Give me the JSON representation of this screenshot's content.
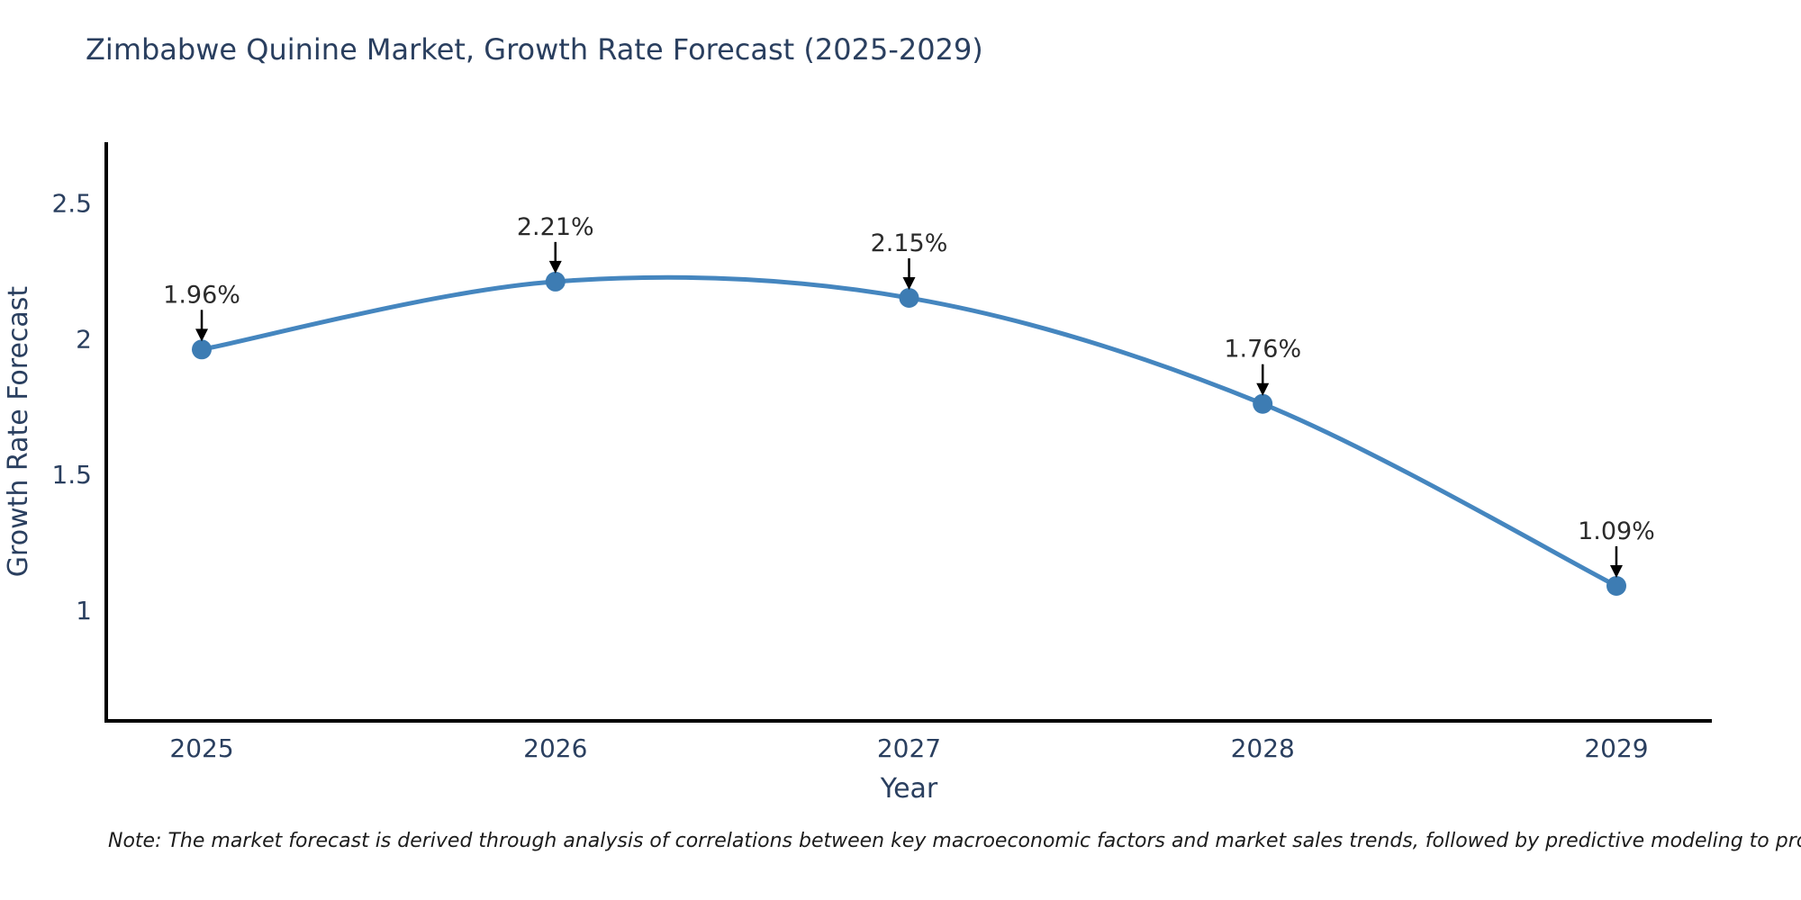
{
  "title": "Zimbabwe Quinine Market, Growth Rate Forecast (2025-2029)",
  "note": "Note: The market forecast is derived through analysis of correlations between key macroeconomic factors and market sales trends, followed by predictive modeling to project future sales",
  "colors": {
    "title_text": "#2a3f5f",
    "tick_text": "#2a3f5f",
    "axis_line": "#000000",
    "series_line": "#4586bf",
    "marker_fill": "#3d7cb3",
    "annotation_text": "#2b2b2b",
    "annotation_arrow": "#000000",
    "note_text": "#1c1c1c",
    "background": "#ffffff"
  },
  "chart_data": {
    "type": "line",
    "title": "Zimbabwe Quinine Market, Growth Rate Forecast (2025-2029)",
    "xlabel": "Year",
    "ylabel": "Growth Rate Forecast",
    "x": [
      2025,
      2026,
      2027,
      2028,
      2029
    ],
    "series": [
      {
        "name": "Growth Rate Forecast",
        "values": [
          1.96,
          2.21,
          2.15,
          1.76,
          1.09
        ],
        "point_labels": [
          "1.96%",
          "2.21%",
          "2.15%",
          "1.76%",
          "1.09%"
        ]
      }
    ],
    "yticks": [
      2.5,
      2,
      1.5,
      1
    ],
    "ylim": [
      0.593,
      2.723
    ],
    "xlim": [
      2024.73,
      2029.27
    ],
    "grid": false,
    "legend": false,
    "curve": "smooth",
    "annotation_style": "percent label with downward black arrow above each data point"
  }
}
